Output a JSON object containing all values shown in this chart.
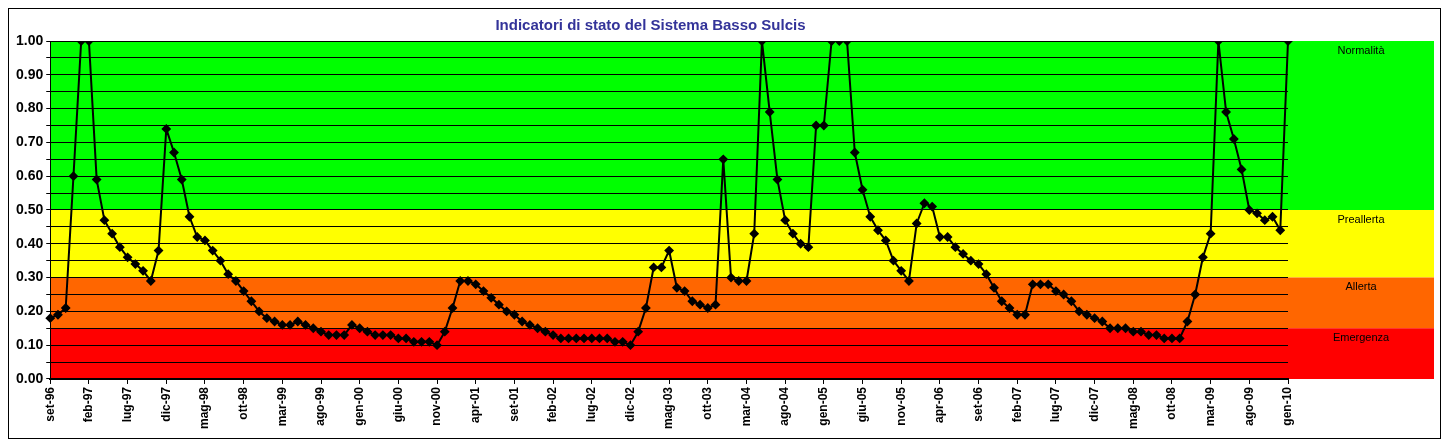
{
  "chart_data": {
    "type": "line",
    "title": "Indicatori di stato del Sistema Basso Sulcis",
    "categories": [
      "set-96",
      null,
      null,
      null,
      null,
      "feb-97",
      null,
      null,
      null,
      null,
      "lug-97",
      null,
      null,
      null,
      null,
      "dic-97",
      null,
      null,
      null,
      null,
      "mag-98",
      null,
      null,
      null,
      null,
      "ott-98",
      null,
      null,
      null,
      null,
      "mar-99",
      null,
      null,
      null,
      null,
      "ago-99",
      null,
      null,
      null,
      null,
      "gen-00",
      null,
      null,
      null,
      null,
      "giu-00",
      null,
      null,
      null,
      null,
      "nov-00",
      null,
      null,
      null,
      null,
      "apr-01",
      null,
      null,
      null,
      null,
      "set-01",
      null,
      null,
      null,
      null,
      "feb-02",
      null,
      null,
      null,
      null,
      "lug-02",
      null,
      null,
      null,
      null,
      "dic-02",
      null,
      null,
      null,
      null,
      "mag-03",
      null,
      null,
      null,
      null,
      "ott-03",
      null,
      null,
      null,
      null,
      "mar-04",
      null,
      null,
      null,
      null,
      "ago-04",
      null,
      null,
      null,
      null,
      "gen-05",
      null,
      null,
      null,
      null,
      "giu-05",
      null,
      null,
      null,
      null,
      "nov-05",
      null,
      null,
      null,
      null,
      "apr-06",
      null,
      null,
      null,
      null,
      "set-06",
      null,
      null,
      null,
      null,
      "feb-07",
      null,
      null,
      null,
      null,
      "lug-07",
      null,
      null,
      null,
      null,
      "dic-07",
      null,
      null,
      null,
      null,
      "mag-08",
      null,
      null,
      null,
      null,
      "ott-08",
      null,
      null,
      null,
      null,
      "mar-09",
      null,
      null,
      null,
      null,
      "ago-09",
      null,
      null,
      null,
      null,
      "gen-10"
    ],
    "series": [
      {
        "color": "#000000",
        "values": [
          0.18,
          0.19,
          0.21,
          0.6,
          1.0,
          1.0,
          0.59,
          0.47,
          0.43,
          0.39,
          0.36,
          0.34,
          0.32,
          0.29,
          0.38,
          0.74,
          0.67,
          0.59,
          0.48,
          0.42,
          0.41,
          0.38,
          0.35,
          0.31,
          0.29,
          0.26,
          0.23,
          0.2,
          0.18,
          0.17,
          0.16,
          0.16,
          0.17,
          0.16,
          0.15,
          0.14,
          0.13,
          0.13,
          0.13,
          0.16,
          0.15,
          0.14,
          0.13,
          0.13,
          0.13,
          0.12,
          0.12,
          0.11,
          0.11,
          0.11,
          0.1,
          0.14,
          0.21,
          0.29,
          0.29,
          0.28,
          0.26,
          0.24,
          0.22,
          0.2,
          0.19,
          0.17,
          0.16,
          0.15,
          0.14,
          0.13,
          0.12,
          0.12,
          0.12,
          0.12,
          0.12,
          0.12,
          0.12,
          0.11,
          0.11,
          0.1,
          0.14,
          0.21,
          0.33,
          0.33,
          0.38,
          0.27,
          0.26,
          0.23,
          0.22,
          0.21,
          0.22,
          0.65,
          0.3,
          0.29,
          0.29,
          0.43,
          1.0,
          0.79,
          0.59,
          0.47,
          0.43,
          0.4,
          0.39,
          0.75,
          0.75,
          1.0,
          1.0,
          1.0,
          0.67,
          0.56,
          0.48,
          0.44,
          0.41,
          0.35,
          0.32,
          0.29,
          0.46,
          0.52,
          0.51,
          0.42,
          0.42,
          0.39,
          0.37,
          0.35,
          0.34,
          0.31,
          0.27,
          0.23,
          0.21,
          0.19,
          0.19,
          0.28,
          0.28,
          0.28,
          0.26,
          0.25,
          0.23,
          0.2,
          0.19,
          0.18,
          0.17,
          0.15,
          0.15,
          0.15,
          0.14,
          0.14,
          0.13,
          0.13,
          0.12,
          0.12,
          0.12,
          0.17,
          0.25,
          0.36,
          0.43,
          1.0,
          0.79,
          0.71,
          0.62,
          0.5,
          0.49,
          0.47,
          0.48,
          0.44,
          1.0
        ]
      }
    ],
    "ylim": [
      0,
      1
    ],
    "yticks": [
      {
        "value": 0,
        "label": "0.00"
      },
      {
        "value": 0.05,
        "label": null
      },
      {
        "value": 0.1,
        "label": "0.10"
      },
      {
        "value": 0.15,
        "label": null
      },
      {
        "value": 0.2,
        "label": "0.20"
      },
      {
        "value": 0.25,
        "label": null
      },
      {
        "value": 0.3,
        "label": "0.30"
      },
      {
        "value": 0.35,
        "label": null
      },
      {
        "value": 0.4,
        "label": "0.40"
      },
      {
        "value": 0.45,
        "label": null
      },
      {
        "value": 0.5,
        "label": "0.50"
      },
      {
        "value": 0.55,
        "label": null
      },
      {
        "value": 0.6,
        "label": "0.60"
      },
      {
        "value": 0.65,
        "label": null
      },
      {
        "value": 0.7,
        "label": "0.70"
      },
      {
        "value": 0.75,
        "label": null
      },
      {
        "value": 0.8,
        "label": "0.80"
      },
      {
        "value": 0.85,
        "label": null
      },
      {
        "value": 0.9,
        "label": "0.90"
      },
      {
        "value": 0.95,
        "label": null
      },
      {
        "value": 1,
        "label": "1.00"
      }
    ],
    "bands": [
      {
        "axis": "y",
        "from": 0.5,
        "to": 1,
        "label": "Normalità",
        "color": "#00ff00"
      },
      {
        "axis": "y",
        "from": 0.3,
        "to": 0.5,
        "label": "Preallerta",
        "color": "#ffff00"
      },
      {
        "axis": "y",
        "from": 0.15,
        "to": 0.3,
        "label": "Allerta",
        "color": "#ff6600"
      },
      {
        "axis": "y",
        "from": 0,
        "to": 0.15,
        "label": "Emergenza",
        "color": "#ff0000"
      }
    ],
    "grid": "y",
    "legend": false,
    "marker": "diamond",
    "line_style": "solid"
  }
}
